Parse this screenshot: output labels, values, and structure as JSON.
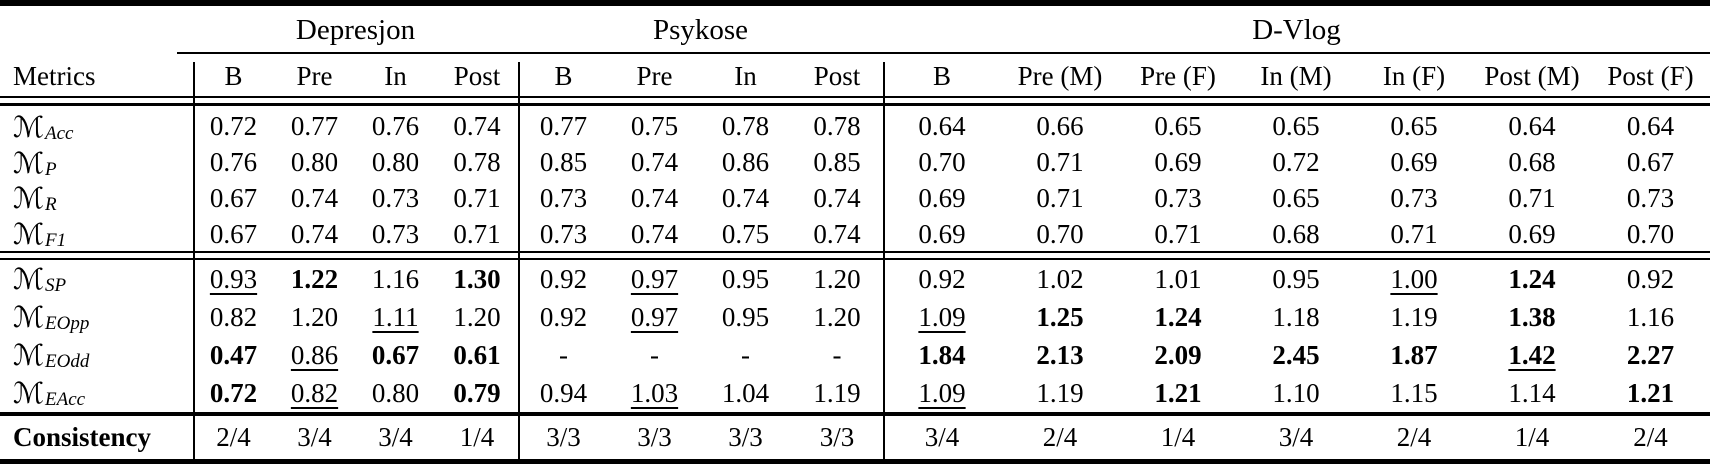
{
  "style": {
    "ink": "#000000",
    "background": "#ffffff"
  },
  "table": {
    "corner_label": "Metrics",
    "groups": [
      {
        "label": "Depresjon",
        "columns": [
          "B",
          "Pre",
          "In",
          "Post"
        ]
      },
      {
        "label": "Psykose",
        "columns": [
          "B",
          "Pre",
          "In",
          "Post"
        ]
      },
      {
        "label": "D-Vlog",
        "columns": [
          "B",
          "Pre (M)",
          "Pre (F)",
          "In (M)",
          "In (F)",
          "Post (M)",
          "Post (F)"
        ]
      }
    ],
    "row_blocks": [
      {
        "rows": [
          {
            "symbol": "ℳ",
            "sub": "Acc",
            "cells": [
              {
                "v": "0.72",
                "s": ""
              },
              {
                "v": "0.77",
                "s": ""
              },
              {
                "v": "0.76",
                "s": ""
              },
              {
                "v": "0.74",
                "s": ""
              },
              {
                "v": "0.77",
                "s": ""
              },
              {
                "v": "0.75",
                "s": ""
              },
              {
                "v": "0.78",
                "s": ""
              },
              {
                "v": "0.78",
                "s": ""
              },
              {
                "v": "0.64",
                "s": ""
              },
              {
                "v": "0.66",
                "s": ""
              },
              {
                "v": "0.65",
                "s": ""
              },
              {
                "v": "0.65",
                "s": ""
              },
              {
                "v": "0.65",
                "s": ""
              },
              {
                "v": "0.64",
                "s": ""
              },
              {
                "v": "0.64",
                "s": ""
              }
            ]
          },
          {
            "symbol": "ℳ",
            "sub": "P",
            "cells": [
              {
                "v": "0.76",
                "s": ""
              },
              {
                "v": "0.80",
                "s": ""
              },
              {
                "v": "0.80",
                "s": ""
              },
              {
                "v": "0.78",
                "s": ""
              },
              {
                "v": "0.85",
                "s": ""
              },
              {
                "v": "0.74",
                "s": ""
              },
              {
                "v": "0.86",
                "s": ""
              },
              {
                "v": "0.85",
                "s": ""
              },
              {
                "v": "0.70",
                "s": ""
              },
              {
                "v": "0.71",
                "s": ""
              },
              {
                "v": "0.69",
                "s": ""
              },
              {
                "v": "0.72",
                "s": ""
              },
              {
                "v": "0.69",
                "s": ""
              },
              {
                "v": "0.68",
                "s": ""
              },
              {
                "v": "0.67",
                "s": ""
              }
            ]
          },
          {
            "symbol": "ℳ",
            "sub": "R",
            "cells": [
              {
                "v": "0.67",
                "s": ""
              },
              {
                "v": "0.74",
                "s": ""
              },
              {
                "v": "0.73",
                "s": ""
              },
              {
                "v": "0.71",
                "s": ""
              },
              {
                "v": "0.73",
                "s": ""
              },
              {
                "v": "0.74",
                "s": ""
              },
              {
                "v": "0.74",
                "s": ""
              },
              {
                "v": "0.74",
                "s": ""
              },
              {
                "v": "0.69",
                "s": ""
              },
              {
                "v": "0.71",
                "s": ""
              },
              {
                "v": "0.73",
                "s": ""
              },
              {
                "v": "0.65",
                "s": ""
              },
              {
                "v": "0.73",
                "s": ""
              },
              {
                "v": "0.71",
                "s": ""
              },
              {
                "v": "0.73",
                "s": ""
              }
            ]
          },
          {
            "symbol": "ℳ",
            "sub": "F1",
            "cells": [
              {
                "v": "0.67",
                "s": ""
              },
              {
                "v": "0.74",
                "s": ""
              },
              {
                "v": "0.73",
                "s": ""
              },
              {
                "v": "0.71",
                "s": ""
              },
              {
                "v": "0.73",
                "s": ""
              },
              {
                "v": "0.74",
                "s": ""
              },
              {
                "v": "0.75",
                "s": ""
              },
              {
                "v": "0.74",
                "s": ""
              },
              {
                "v": "0.69",
                "s": ""
              },
              {
                "v": "0.70",
                "s": ""
              },
              {
                "v": "0.71",
                "s": ""
              },
              {
                "v": "0.68",
                "s": ""
              },
              {
                "v": "0.71",
                "s": ""
              },
              {
                "v": "0.69",
                "s": ""
              },
              {
                "v": "0.70",
                "s": ""
              }
            ]
          }
        ]
      },
      {
        "rows": [
          {
            "symbol": "ℳ",
            "sub": "SP",
            "cells": [
              {
                "v": "0.93",
                "s": "u"
              },
              {
                "v": "1.22",
                "s": "b"
              },
              {
                "v": "1.16",
                "s": ""
              },
              {
                "v": "1.30",
                "s": "b"
              },
              {
                "v": "0.92",
                "s": ""
              },
              {
                "v": "0.97",
                "s": "u"
              },
              {
                "v": "0.95",
                "s": ""
              },
              {
                "v": "1.20",
                "s": ""
              },
              {
                "v": "0.92",
                "s": ""
              },
              {
                "v": "1.02",
                "s": ""
              },
              {
                "v": "1.01",
                "s": ""
              },
              {
                "v": "0.95",
                "s": ""
              },
              {
                "v": "1.00",
                "s": "u"
              },
              {
                "v": "1.24",
                "s": "b"
              },
              {
                "v": "0.92",
                "s": ""
              }
            ]
          },
          {
            "symbol": "ℳ",
            "sub": "EOpp",
            "cells": [
              {
                "v": "0.82",
                "s": ""
              },
              {
                "v": "1.20",
                "s": ""
              },
              {
                "v": "1.11",
                "s": "u"
              },
              {
                "v": "1.20",
                "s": ""
              },
              {
                "v": "0.92",
                "s": ""
              },
              {
                "v": "0.97",
                "s": "u"
              },
              {
                "v": "0.95",
                "s": ""
              },
              {
                "v": "1.20",
                "s": ""
              },
              {
                "v": "1.09",
                "s": "u"
              },
              {
                "v": "1.25",
                "s": "b"
              },
              {
                "v": "1.24",
                "s": "b"
              },
              {
                "v": "1.18",
                "s": ""
              },
              {
                "v": "1.19",
                "s": ""
              },
              {
                "v": "1.38",
                "s": "b"
              },
              {
                "v": "1.16",
                "s": ""
              }
            ]
          },
          {
            "symbol": "ℳ",
            "sub": "EOdd",
            "cells": [
              {
                "v": "0.47",
                "s": "b"
              },
              {
                "v": "0.86",
                "s": "u"
              },
              {
                "v": "0.67",
                "s": "b"
              },
              {
                "v": "0.61",
                "s": "b"
              },
              {
                "v": "-",
                "s": ""
              },
              {
                "v": "-",
                "s": ""
              },
              {
                "v": "-",
                "s": ""
              },
              {
                "v": "-",
                "s": ""
              },
              {
                "v": "1.84",
                "s": "b"
              },
              {
                "v": "2.13",
                "s": "b"
              },
              {
                "v": "2.09",
                "s": "b"
              },
              {
                "v": "2.45",
                "s": "b"
              },
              {
                "v": "1.87",
                "s": "b"
              },
              {
                "v": "1.42",
                "s": "bu"
              },
              {
                "v": "2.27",
                "s": "b"
              }
            ]
          },
          {
            "symbol": "ℳ",
            "sub": "EAcc",
            "cells": [
              {
                "v": "0.72",
                "s": "b"
              },
              {
                "v": "0.82",
                "s": "u"
              },
              {
                "v": "0.80",
                "s": ""
              },
              {
                "v": "0.79",
                "s": "b"
              },
              {
                "v": "0.94",
                "s": ""
              },
              {
                "v": "1.03",
                "s": "u"
              },
              {
                "v": "1.04",
                "s": ""
              },
              {
                "v": "1.19",
                "s": ""
              },
              {
                "v": "1.09",
                "s": "u"
              },
              {
                "v": "1.19",
                "s": ""
              },
              {
                "v": "1.21",
                "s": "b"
              },
              {
                "v": "1.10",
                "s": ""
              },
              {
                "v": "1.15",
                "s": ""
              },
              {
                "v": "1.14",
                "s": ""
              },
              {
                "v": "1.21",
                "s": "b"
              }
            ]
          }
        ]
      }
    ],
    "footer_row": {
      "label": "Consistency",
      "values": [
        "2/4",
        "3/4",
        "3/4",
        "1/4",
        "3/3",
        "3/3",
        "3/3",
        "3/3",
        "3/4",
        "2/4",
        "1/4",
        "3/4",
        "2/4",
        "1/4",
        "2/4"
      ]
    }
  }
}
